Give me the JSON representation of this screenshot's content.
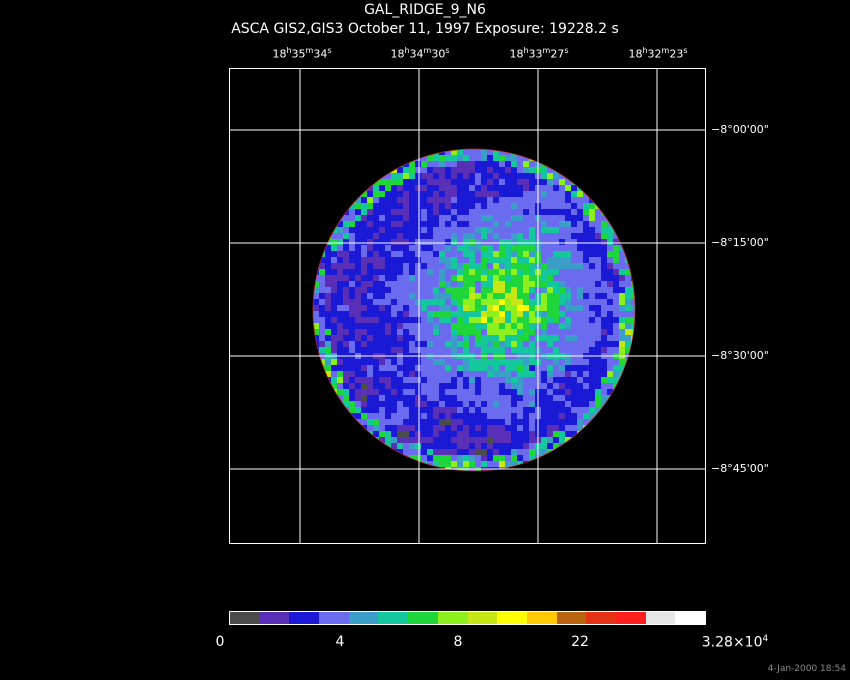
{
  "title": {
    "line1": "GAL_RIDGE_9_N6",
    "line2": "ASCA GIS2,GIS3 October 11, 1997 Exposure: 19228.2 s"
  },
  "ra_labels": [
    {
      "h": "18",
      "m": "35",
      "s": "34"
    },
    {
      "h": "18",
      "m": "34",
      "s": "30"
    },
    {
      "h": "18",
      "m": "33",
      "s": "27"
    },
    {
      "h": "18",
      "m": "32",
      "s": "23"
    }
  ],
  "dec_labels": [
    "−8°00'00\"",
    "−8°15'00\"",
    "−8°30'00\"",
    "−8°45'00\""
  ],
  "colorbar": {
    "colors": [
      "#4b4b4b",
      "#5a2fb8",
      "#1a1ad6",
      "#6b6bf0",
      "#3b9ec9",
      "#14c79c",
      "#1ed63a",
      "#8cf01e",
      "#c8e614",
      "#ffff00",
      "#ffc800",
      "#b8640f",
      "#e63214",
      "#ff1e1e",
      "#e6e6e6",
      "#ffffff"
    ],
    "labels": [
      "0",
      "4",
      "8",
      "22"
    ],
    "max_label_base": "3.28×10",
    "max_label_exp": "4"
  },
  "timestamp": "4-Jan-2000 18:54"
}
